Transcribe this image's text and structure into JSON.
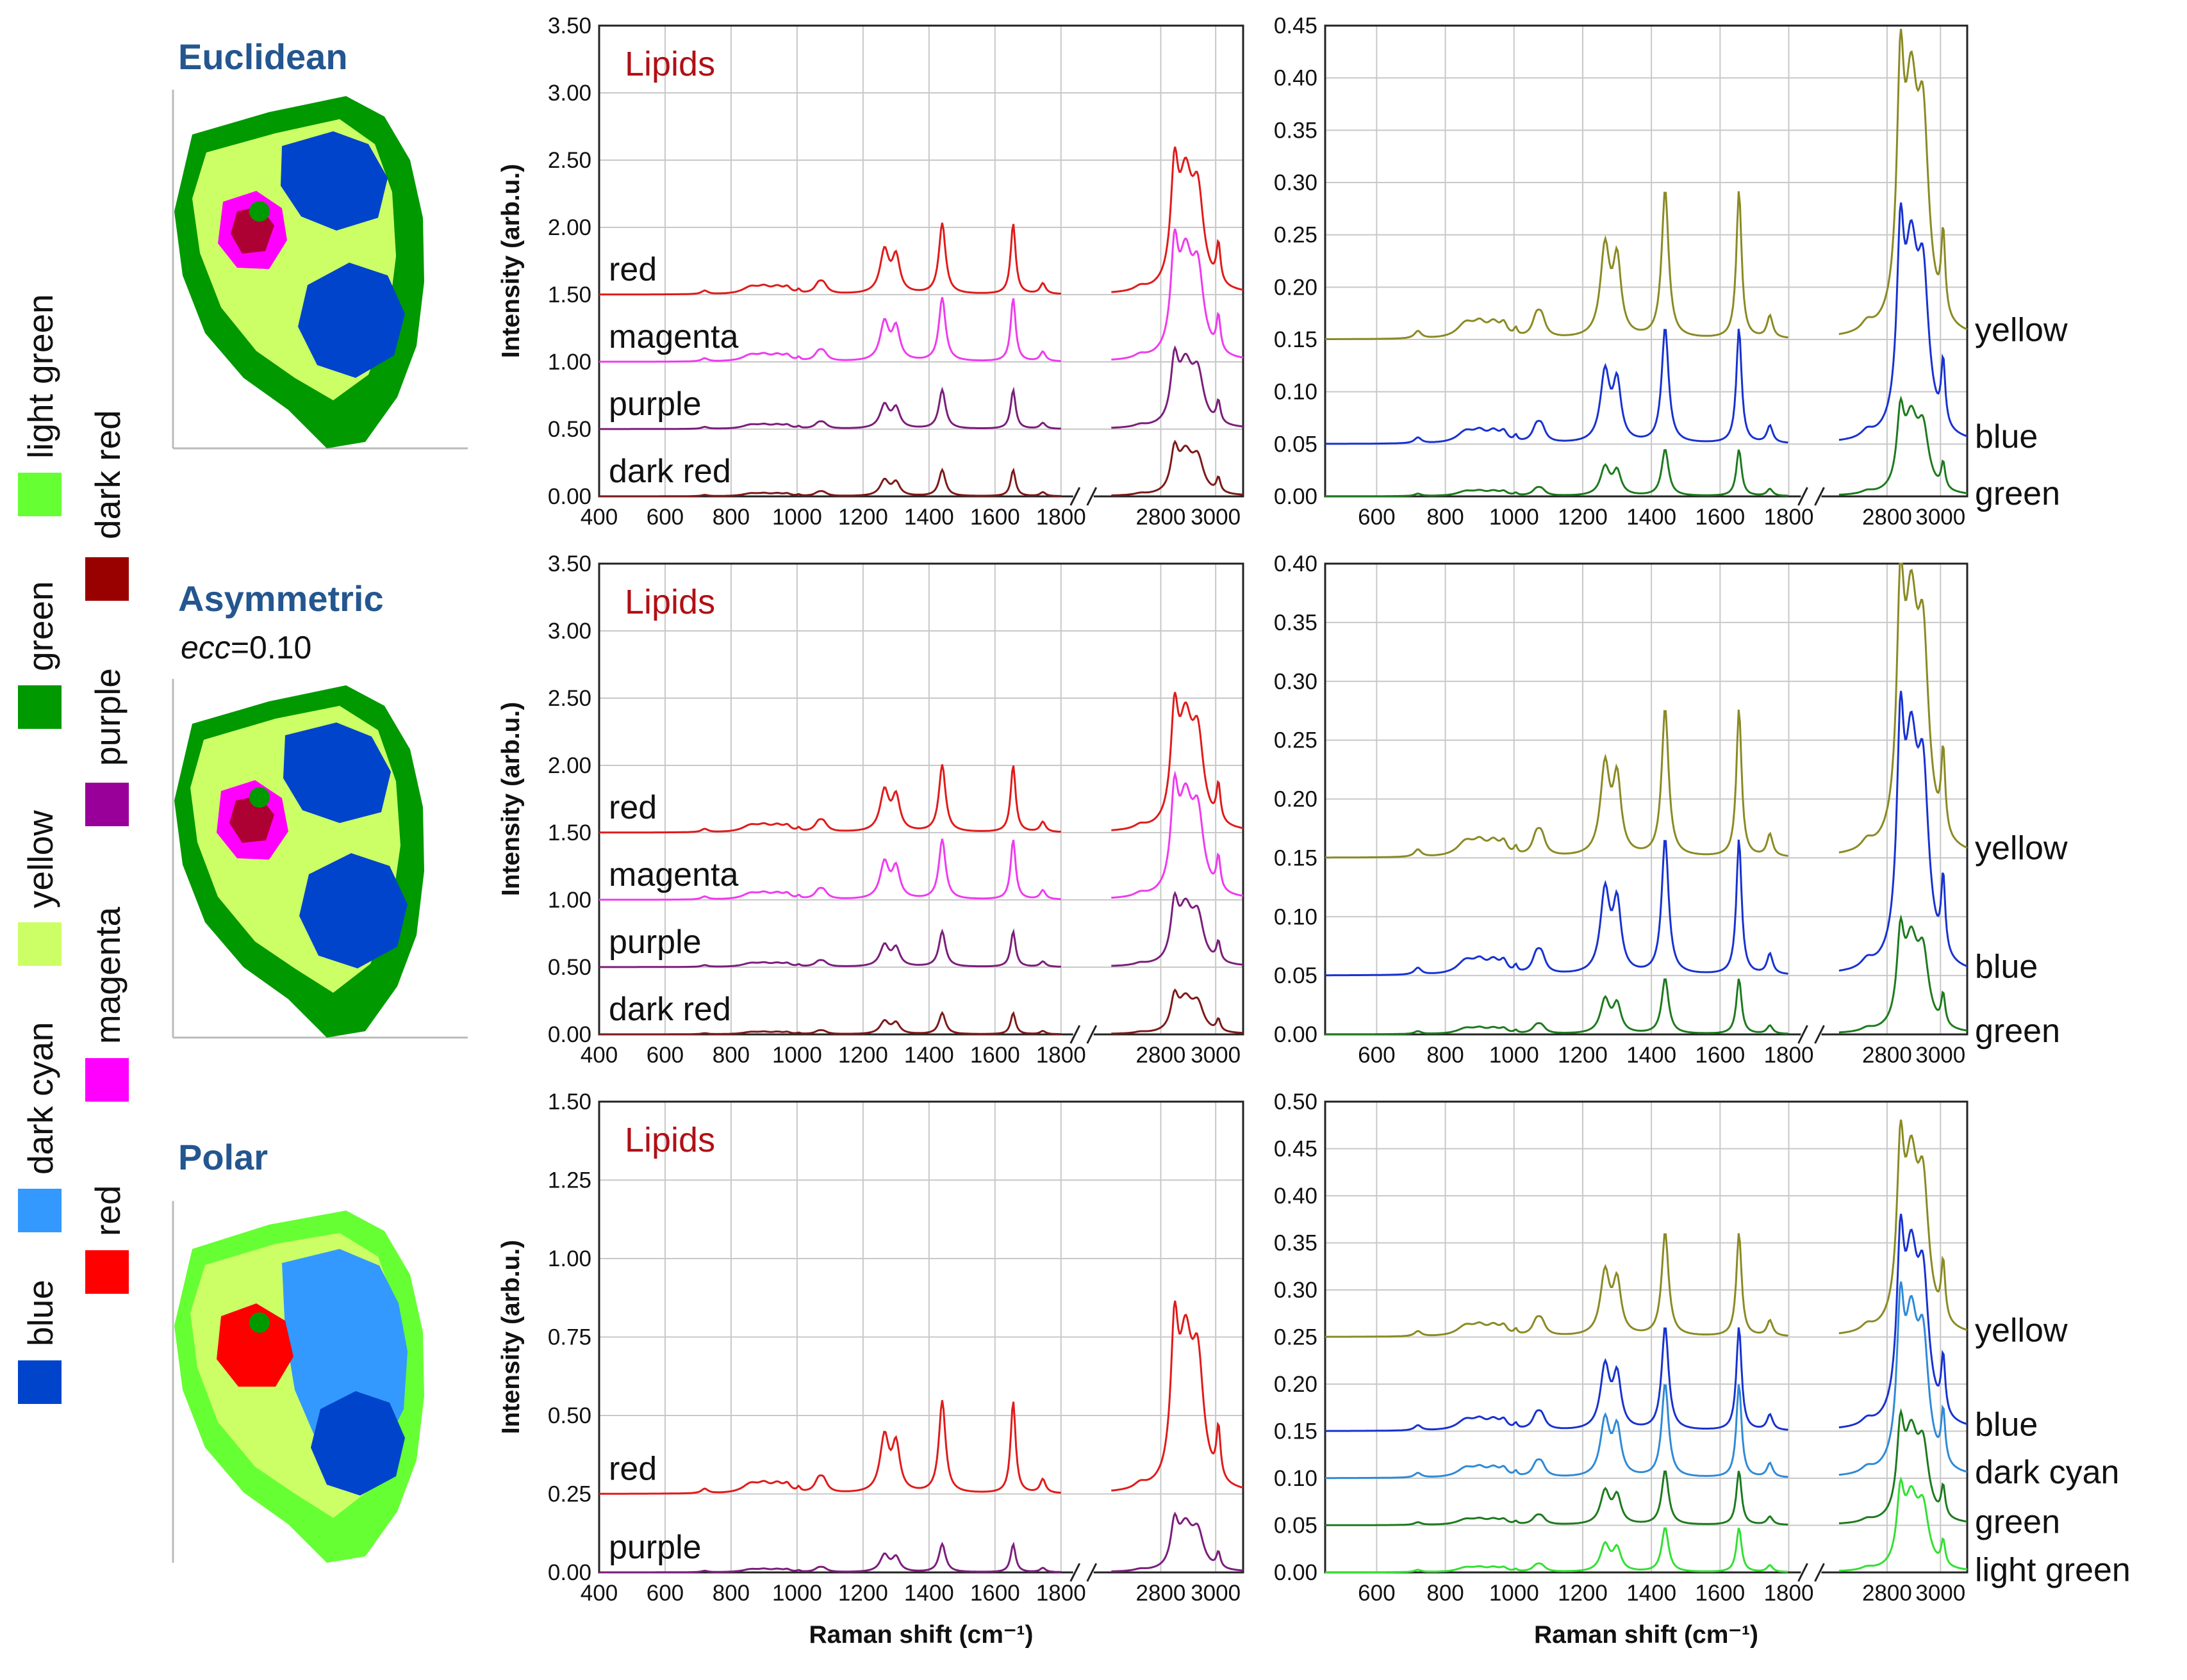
{
  "colors": {
    "red": "#e01b1b",
    "magenta": "#ef3bef",
    "purple": "#7c1e7c",
    "dark_red": "#7d1a1a",
    "yellow": "#8a8a24",
    "blue": "#1832d0",
    "dark_cyan": "#2f8ad6",
    "green": "#1e7a1e",
    "light_green": "#33e033",
    "title_blue": "#24568f",
    "lipids": "#b01016",
    "grid": "#c8c8c8"
  },
  "legend": {
    "items": [
      {
        "label": "light green",
        "color": "#66ff33"
      },
      {
        "label": "dark red",
        "color": "#990000"
      },
      {
        "label": "green",
        "color": "#009900"
      },
      {
        "label": "purple",
        "color": "#990099"
      },
      {
        "label": "yellow",
        "color": "#ccff66"
      },
      {
        "label": "magenta",
        "color": "#ff00ff"
      },
      {
        "label": "dark cyan",
        "color": "#3399ff"
      },
      {
        "label": "red",
        "color": "#ff0000"
      },
      {
        "label": "blue",
        "color": "#0044cc"
      }
    ]
  },
  "maps": [
    {
      "title": "Euclidean",
      "subtitle_italic": "",
      "subtitle_value": ""
    },
    {
      "title": "Asymmetric",
      "subtitle_italic": "ecc",
      "subtitle_value": "=0.10"
    },
    {
      "title": "Polar",
      "subtitle_italic": "",
      "subtitle_value": ""
    }
  ],
  "chart_data": [
    {
      "type": "line",
      "row": 0,
      "side": "left",
      "title": "Lipids",
      "ylabel": "Intensity (arb.u.)",
      "xlabel": "",
      "x_ticks": [
        "400",
        "600",
        "800",
        "1000",
        "1200",
        "1400",
        "1600",
        "1800",
        "2800",
        "3000"
      ],
      "y_ticks": [
        "0.00",
        "0.50",
        "1.00",
        "1.50",
        "2.00",
        "2.50",
        "3.00",
        "3.50"
      ],
      "ylim": [
        0,
        3.5
      ],
      "series": [
        {
          "name": "red",
          "color_key": "red",
          "offset": 1.5,
          "scale": 1.0
        },
        {
          "name": "magenta",
          "color_key": "magenta",
          "offset": 1.0,
          "scale": 0.9
        },
        {
          "name": "purple",
          "color_key": "purple",
          "offset": 0.5,
          "scale": 0.55
        },
        {
          "name": "dark red",
          "color_key": "dark_red",
          "offset": 0.0,
          "scale": 0.37
        }
      ]
    },
    {
      "type": "line",
      "row": 0,
      "side": "right",
      "title": "",
      "ylabel": "",
      "xlabel": "",
      "x_ticks": [
        "600",
        "800",
        "1000",
        "1200",
        "1400",
        "1600",
        "1800",
        "2800",
        "3000"
      ],
      "y_ticks": [
        "0.00",
        "0.05",
        "0.10",
        "0.15",
        "0.20",
        "0.25",
        "0.30",
        "0.35",
        "0.40",
        "0.45"
      ],
      "ylim": [
        0,
        0.45
      ],
      "series": [
        {
          "name": "yellow",
          "color_key": "yellow",
          "offset": 0.15,
          "scale": 0.27
        },
        {
          "name": "blue",
          "color_key": "blue",
          "offset": 0.05,
          "scale": 0.21
        },
        {
          "name": "green",
          "color_key": "green",
          "offset": 0.0,
          "scale": 0.085
        }
      ]
    },
    {
      "type": "line",
      "row": 1,
      "side": "left",
      "title": "Lipids",
      "ylabel": "Intensity (arb.u.)",
      "xlabel": "",
      "x_ticks": [
        "400",
        "600",
        "800",
        "1000",
        "1200",
        "1400",
        "1600",
        "1800",
        "2800",
        "3000"
      ],
      "y_ticks": [
        "0.00",
        "0.50",
        "1.00",
        "1.50",
        "2.00",
        "2.50",
        "3.00",
        "3.50"
      ],
      "ylim": [
        0,
        3.5
      ],
      "series": [
        {
          "name": "red",
          "color_key": "red",
          "offset": 1.5,
          "scale": 0.95
        },
        {
          "name": "magenta",
          "color_key": "magenta",
          "offset": 1.0,
          "scale": 0.85
        },
        {
          "name": "purple",
          "color_key": "purple",
          "offset": 0.5,
          "scale": 0.5
        },
        {
          "name": "dark red",
          "color_key": "dark_red",
          "offset": 0.0,
          "scale": 0.3
        }
      ]
    },
    {
      "type": "line",
      "row": 1,
      "side": "right",
      "title": "",
      "ylabel": "",
      "xlabel": "",
      "x_ticks": [
        "600",
        "800",
        "1000",
        "1200",
        "1400",
        "1600",
        "1800",
        "2800",
        "3000"
      ],
      "y_ticks": [
        "0.00",
        "0.05",
        "0.10",
        "0.15",
        "0.20",
        "0.25",
        "0.30",
        "0.35",
        "0.40"
      ],
      "ylim": [
        0,
        0.4
      ],
      "series": [
        {
          "name": "yellow",
          "color_key": "yellow",
          "offset": 0.15,
          "scale": 0.24
        },
        {
          "name": "blue",
          "color_key": "blue",
          "offset": 0.05,
          "scale": 0.22
        },
        {
          "name": "green",
          "color_key": "green",
          "offset": 0.0,
          "scale": 0.09
        }
      ]
    },
    {
      "type": "line",
      "row": 2,
      "side": "left",
      "title": "Lipids",
      "ylabel": "Intensity (arb.u.)",
      "xlabel": "Raman shift (cm⁻¹)",
      "x_ticks": [
        "400",
        "600",
        "800",
        "1000",
        "1200",
        "1400",
        "1600",
        "1800",
        "2800",
        "3000"
      ],
      "y_ticks": [
        "0.00",
        "0.25",
        "0.50",
        "0.75",
        "1.00",
        "1.25",
        "1.50"
      ],
      "ylim": [
        0,
        1.5
      ],
      "series": [
        {
          "name": "red",
          "color_key": "red",
          "offset": 0.25,
          "scale": 0.56
        },
        {
          "name": "purple",
          "color_key": "purple",
          "offset": 0.0,
          "scale": 0.17
        }
      ]
    },
    {
      "type": "line",
      "row": 2,
      "side": "right",
      "title": "",
      "ylabel": "",
      "xlabel": "Raman shift (cm⁻¹)",
      "x_ticks": [
        "600",
        "800",
        "1000",
        "1200",
        "1400",
        "1600",
        "1800",
        "2800",
        "3000"
      ],
      "y_ticks": [
        "0.00",
        "0.05",
        "0.10",
        "0.15",
        "0.20",
        "0.25",
        "0.30",
        "0.35",
        "0.40",
        "0.45",
        "0.50"
      ],
      "ylim": [
        0,
        0.5
      ],
      "series": [
        {
          "name": "yellow",
          "color_key": "yellow",
          "offset": 0.25,
          "scale": 0.21
        },
        {
          "name": "blue",
          "color_key": "blue",
          "offset": 0.15,
          "scale": 0.21
        },
        {
          "name": "dark cyan",
          "color_key": "dark_cyan",
          "offset": 0.1,
          "scale": 0.19
        },
        {
          "name": "green",
          "color_key": "green",
          "offset": 0.05,
          "scale": 0.11
        },
        {
          "name": "light green",
          "color_key": "light_green",
          "offset": 0.0,
          "scale": 0.09
        }
      ]
    }
  ]
}
